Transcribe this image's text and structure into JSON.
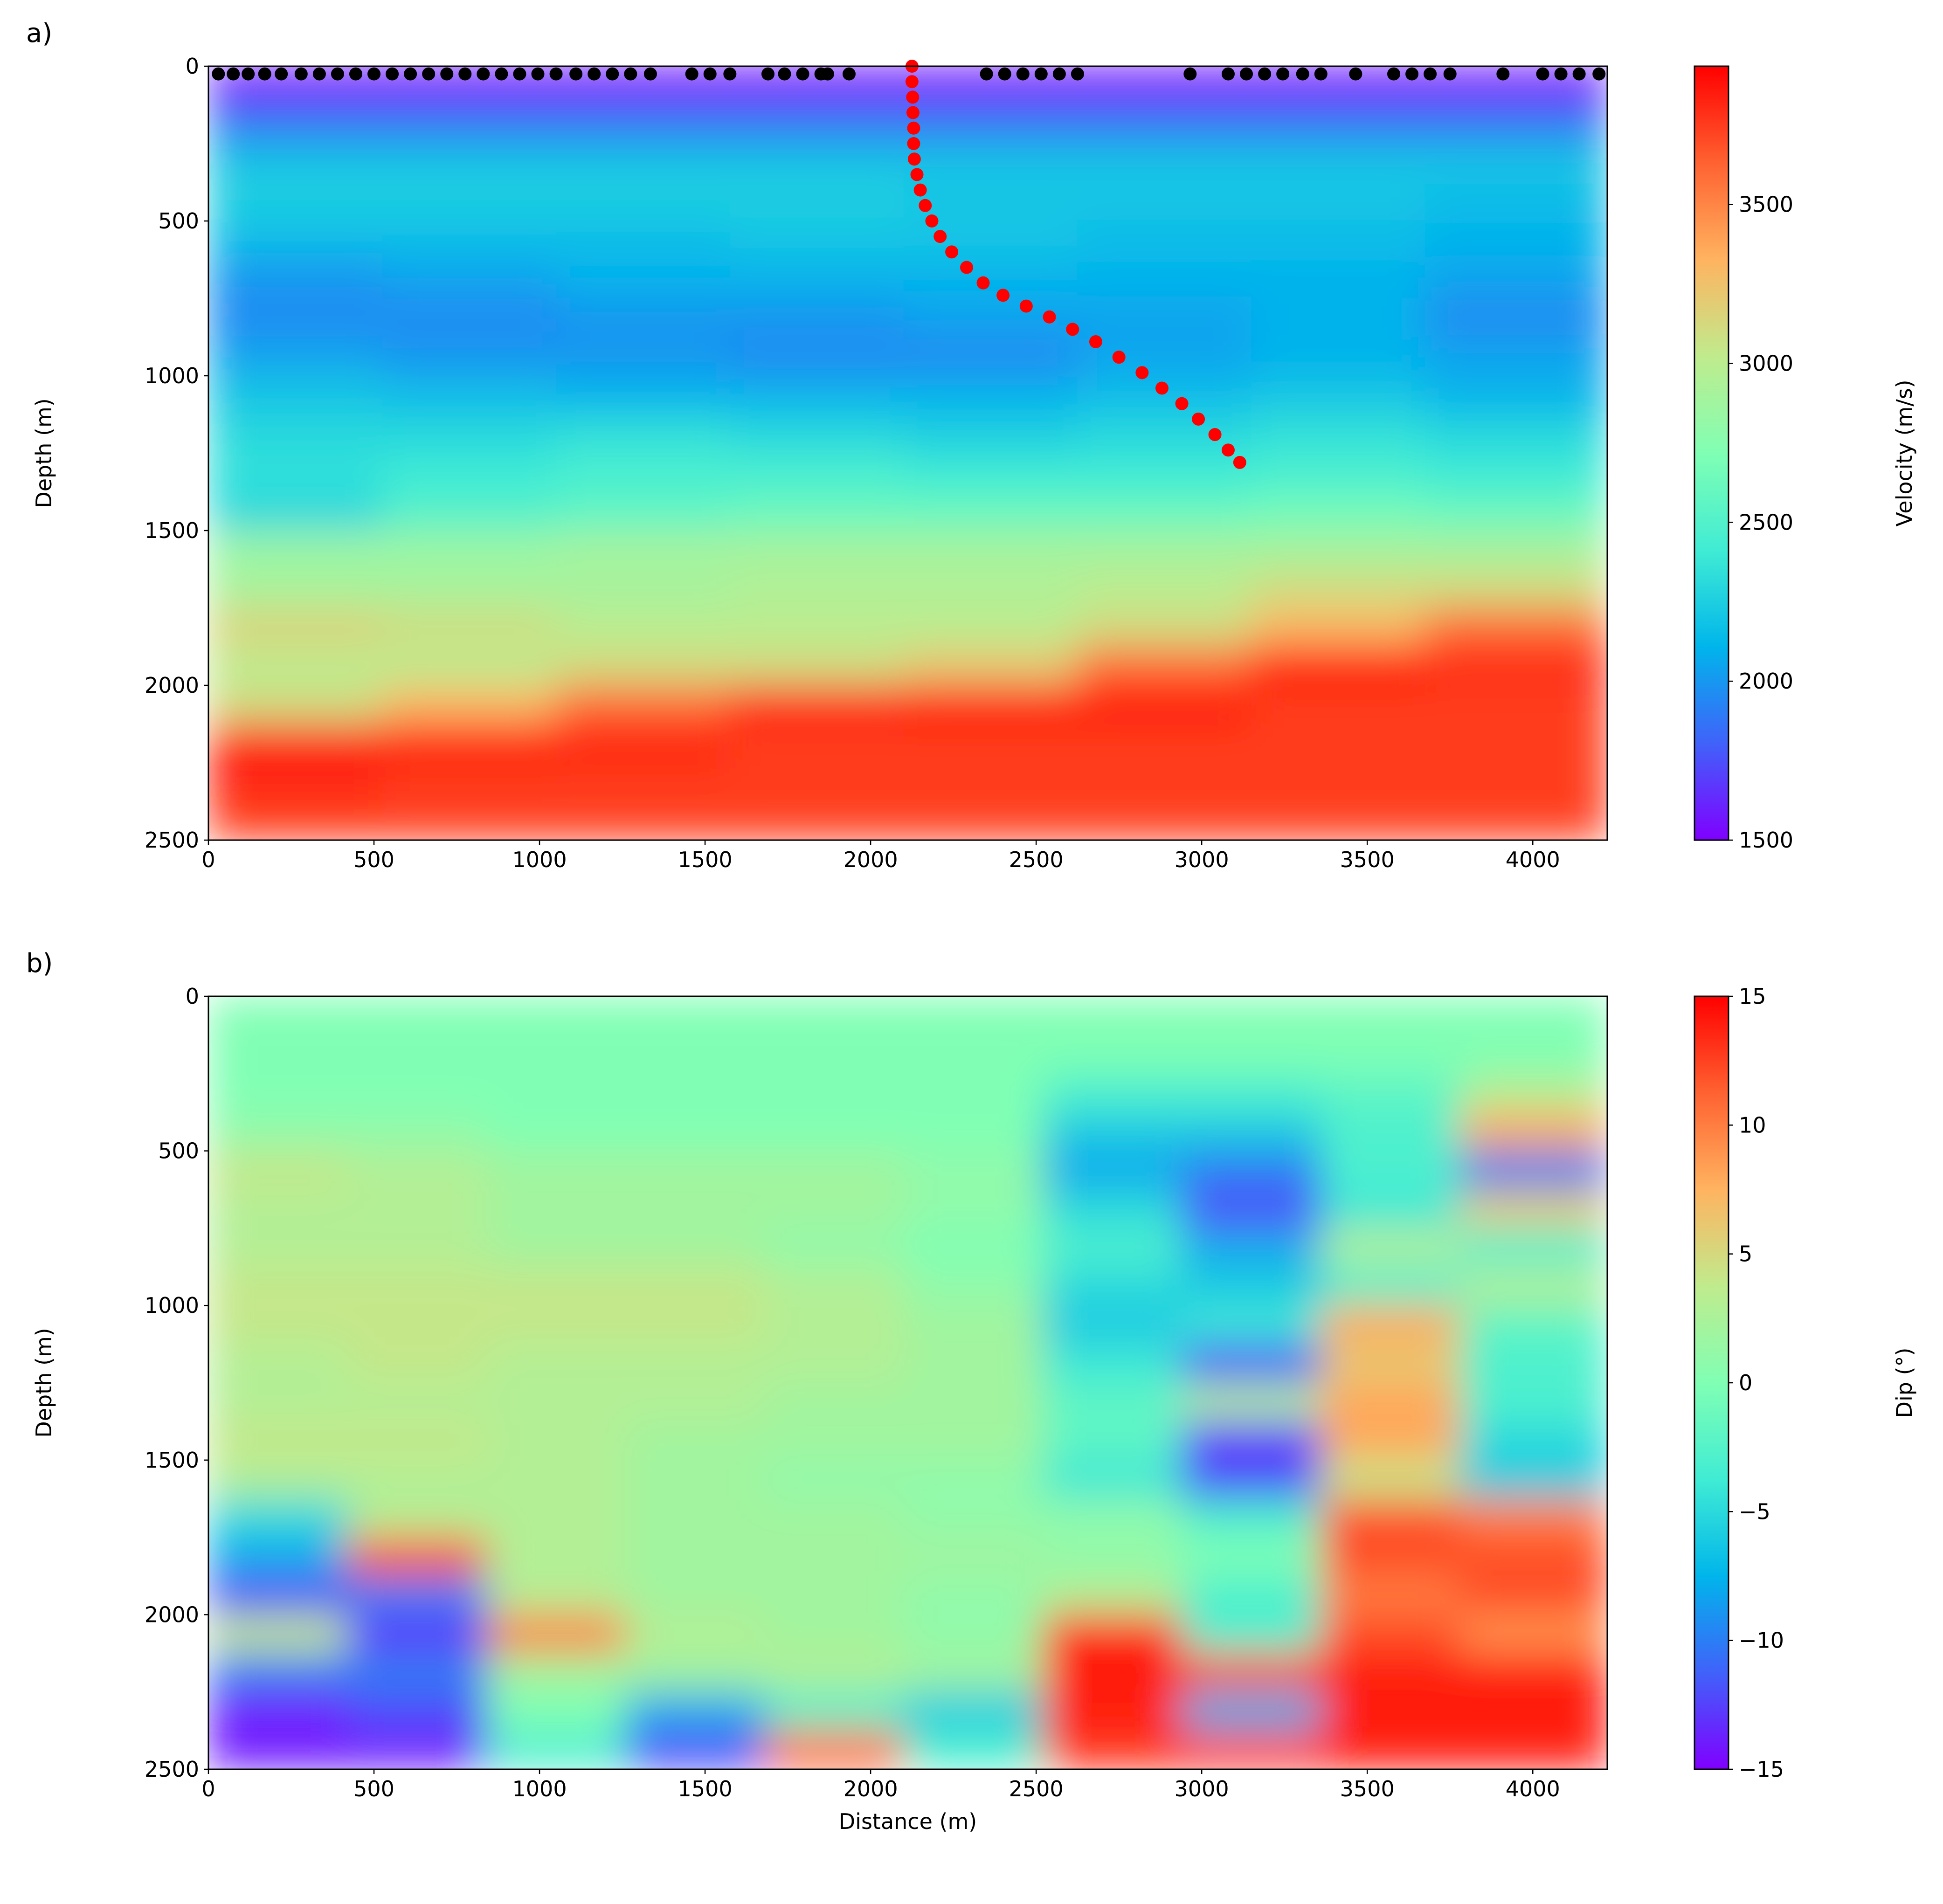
{
  "chart_data": [
    {
      "type": "heatmap",
      "label": "a)",
      "ylabel": "Depth (m)",
      "colorbar_label": "Velocity (m/s)",
      "xlim": [
        0,
        4225
      ],
      "ylim": [
        2500,
        0
      ],
      "xticks": [
        0,
        500,
        1000,
        1500,
        2000,
        2500,
        3000,
        3500,
        4000
      ],
      "yticks": [
        0,
        500,
        1000,
        1500,
        2000,
        2500
      ],
      "clim": [
        1500,
        3935
      ],
      "cticks": [
        1500,
        2000,
        2500,
        3000,
        3500
      ],
      "cmap": [
        "#8000ff",
        "#4062fa",
        "#00b5eb",
        "#40ecd4",
        "#80ffb4",
        "#c0eb8d",
        "#ffb360",
        "#ff6231",
        "#ff0000"
      ],
      "x_edges": [
        0,
        525,
        1050,
        1575,
        2100,
        2625,
        3150,
        3675,
        4225
      ],
      "y_edges": [
        0,
        125,
        250,
        375,
        500,
        625,
        750,
        875,
        1000,
        1125,
        1250,
        1375,
        1500,
        1625,
        1750,
        1875,
        2000,
        2125,
        2250,
        2375,
        2500
      ],
      "z": [
        [
          1550,
          1550,
          1550,
          1550,
          1550,
          1550,
          1550,
          1550
        ],
        [
          1900,
          1900,
          1900,
          1900,
          1900,
          1900,
          1900,
          1900
        ],
        [
          2200,
          2200,
          2200,
          2200,
          2200,
          2200,
          2200,
          2200
        ],
        [
          2250,
          2250,
          2250,
          2250,
          2200,
          2200,
          2200,
          2150
        ],
        [
          2150,
          2150,
          2150,
          2200,
          2200,
          2150,
          2150,
          2100
        ],
        [
          2000,
          2050,
          2100,
          2100,
          2100,
          2100,
          2100,
          2050
        ],
        [
          1950,
          1950,
          2000,
          2000,
          2050,
          2050,
          2100,
          1950
        ],
        [
          2050,
          2000,
          2000,
          1950,
          1950,
          2050,
          2100,
          2050
        ],
        [
          2200,
          2150,
          2100,
          2100,
          2100,
          2150,
          2200,
          2100
        ],
        [
          2300,
          2300,
          2350,
          2300,
          2250,
          2300,
          2350,
          2300
        ],
        [
          2350,
          2400,
          2450,
          2450,
          2400,
          2400,
          2450,
          2400
        ],
        [
          2300,
          2500,
          2550,
          2600,
          2600,
          2600,
          2650,
          2600
        ],
        [
          2850,
          2850,
          2900,
          2900,
          2900,
          2900,
          2900,
          2900
        ],
        [
          2900,
          2900,
          2900,
          2950,
          2950,
          3000,
          3100,
          3100
        ],
        [
          3150,
          3100,
          3000,
          3000,
          3000,
          3100,
          3300,
          3600
        ],
        [
          3000,
          3000,
          3100,
          3100,
          3200,
          3600,
          3900,
          3800
        ],
        [
          3100,
          3300,
          3600,
          3850,
          3900,
          3900,
          3750,
          3750
        ],
        [
          3900,
          3900,
          3850,
          3750,
          3750,
          3750,
          3750,
          3750
        ],
        [
          3800,
          3750,
          3750,
          3750,
          3750,
          3750,
          3750,
          3750
        ],
        [
          3750,
          3750,
          3750,
          3750,
          3750,
          3750,
          3750,
          3750
        ]
      ],
      "receivers": {
        "color": "#000000",
        "x": [
          30,
          75,
          120,
          170,
          220,
          280,
          335,
          390,
          445,
          500,
          555,
          610,
          665,
          720,
          775,
          830,
          885,
          940,
          995,
          1050,
          1110,
          1165,
          1220,
          1275,
          1335,
          1460,
          1515,
          1575,
          1690,
          1740,
          1795,
          1850,
          1870,
          1935,
          2350,
          2405,
          2460,
          2515,
          2570,
          2625,
          2965,
          3080,
          3135,
          3190,
          3245,
          3305,
          3360,
          3465,
          3580,
          3635,
          3690,
          3750,
          3910,
          4030,
          4085,
          4140,
          4200
        ],
        "y": [
          25,
          25,
          25,
          25,
          25,
          25,
          25,
          25,
          25,
          25,
          25,
          25,
          25,
          25,
          25,
          25,
          25,
          25,
          25,
          25,
          25,
          25,
          25,
          25,
          25,
          25,
          25,
          25,
          25,
          25,
          25,
          25,
          25,
          25,
          25,
          25,
          25,
          25,
          25,
          25,
          25,
          25,
          25,
          25,
          25,
          25,
          25,
          25,
          25,
          25,
          25,
          25,
          25,
          25,
          25,
          25,
          25
        ]
      },
      "well": {
        "color": "#ff0000",
        "x": [
          2125,
          2125,
          2127,
          2128,
          2130,
          2130,
          2132,
          2140,
          2150,
          2165,
          2185,
          2210,
          2245,
          2290,
          2340,
          2400,
          2470,
          2540,
          2610,
          2680,
          2750,
          2820,
          2880,
          2940,
          2990,
          3040,
          3080,
          3115
        ],
        "y": [
          0,
          50,
          100,
          150,
          200,
          250,
          300,
          350,
          400,
          450,
          500,
          550,
          600,
          650,
          700,
          740,
          775,
          810,
          850,
          890,
          940,
          990,
          1040,
          1090,
          1140,
          1190,
          1240,
          1280
        ]
      }
    },
    {
      "type": "heatmap",
      "label": "b)",
      "xlabel": "Distance (m)",
      "ylabel": "Depth (m)",
      "colorbar_label": "Dip (°)",
      "xlim": [
        0,
        4225
      ],
      "ylim": [
        2500,
        0
      ],
      "xticks": [
        0,
        500,
        1000,
        1500,
        2000,
        2500,
        3000,
        3500,
        4000
      ],
      "yticks": [
        0,
        500,
        1000,
        1500,
        2000,
        2500
      ],
      "clim": [
        -15,
        15
      ],
      "cticks": [
        {
          "value": -15,
          "label": "−15"
        },
        {
          "value": -10,
          "label": "−10"
        },
        {
          "value": -5,
          "label": "−5"
        },
        0,
        5,
        10,
        15
      ],
      "cmap": [
        "#8000ff",
        "#4062fa",
        "#00b5eb",
        "#40ecd4",
        "#80ffb4",
        "#c0eb8d",
        "#ffb360",
        "#ff6231",
        "#ff0000"
      ],
      "x_edges": [
        0,
        420,
        840,
        1260,
        1680,
        2100,
        2520,
        2940,
        3360,
        3780,
        4225
      ],
      "y_edges": [
        0,
        125,
        250,
        375,
        500,
        625,
        750,
        875,
        1000,
        1125,
        1250,
        1375,
        1500,
        1625,
        1750,
        1875,
        2000,
        2125,
        2250,
        2375,
        2500
      ],
      "z": [
        [
          0,
          0,
          0,
          0,
          0,
          0,
          0,
          0,
          0,
          0
        ],
        [
          0,
          0,
          0,
          0,
          0,
          0,
          0,
          0,
          0,
          0
        ],
        [
          0,
          0,
          0,
          0,
          0,
          0,
          -3,
          -3,
          -2,
          3
        ],
        [
          1,
          1,
          0,
          0,
          0,
          0,
          -6,
          -6,
          -3,
          8
        ],
        [
          4,
          3,
          2,
          2,
          2,
          1,
          -8,
          -10,
          -3,
          -10
        ],
        [
          3,
          3,
          2,
          2,
          2,
          1,
          -5,
          -12,
          -4,
          6
        ],
        [
          3,
          3,
          2,
          2,
          1,
          0,
          -3,
          -8,
          3,
          -3
        ],
        [
          4,
          4,
          4,
          4,
          3,
          1,
          -5,
          -6,
          -3,
          3
        ],
        [
          4,
          4,
          4,
          4,
          3,
          2,
          -6,
          -4,
          8,
          -2
        ],
        [
          3,
          4,
          3,
          3,
          3,
          2,
          -4,
          -12,
          6,
          -3
        ],
        [
          3,
          3,
          3,
          3,
          2,
          2,
          -2,
          3,
          8,
          -3
        ],
        [
          4,
          4,
          3,
          2,
          2,
          2,
          -2,
          -13,
          8,
          -5
        ],
        [
          3,
          3,
          3,
          2,
          1,
          1,
          -4,
          -12,
          4,
          -6
        ],
        [
          -5,
          3,
          3,
          2,
          2,
          1,
          1,
          -3,
          12,
          10
        ],
        [
          -8,
          12,
          3,
          2,
          2,
          2,
          1,
          0,
          12,
          12
        ],
        [
          -12,
          -10,
          3,
          2,
          2,
          1,
          3,
          -3,
          10,
          12
        ],
        [
          4,
          -13,
          10,
          3,
          2,
          1,
          14,
          -3,
          12,
          9
        ],
        [
          -10,
          -10,
          2,
          2,
          3,
          2,
          14,
          12,
          14,
          14
        ],
        [
          -14,
          -12,
          0,
          -8,
          -3,
          -6,
          14,
          -8,
          14,
          14
        ],
        [
          -14,
          -14,
          -3,
          -12,
          11,
          -3,
          13,
          13,
          14,
          14
        ]
      ]
    }
  ]
}
